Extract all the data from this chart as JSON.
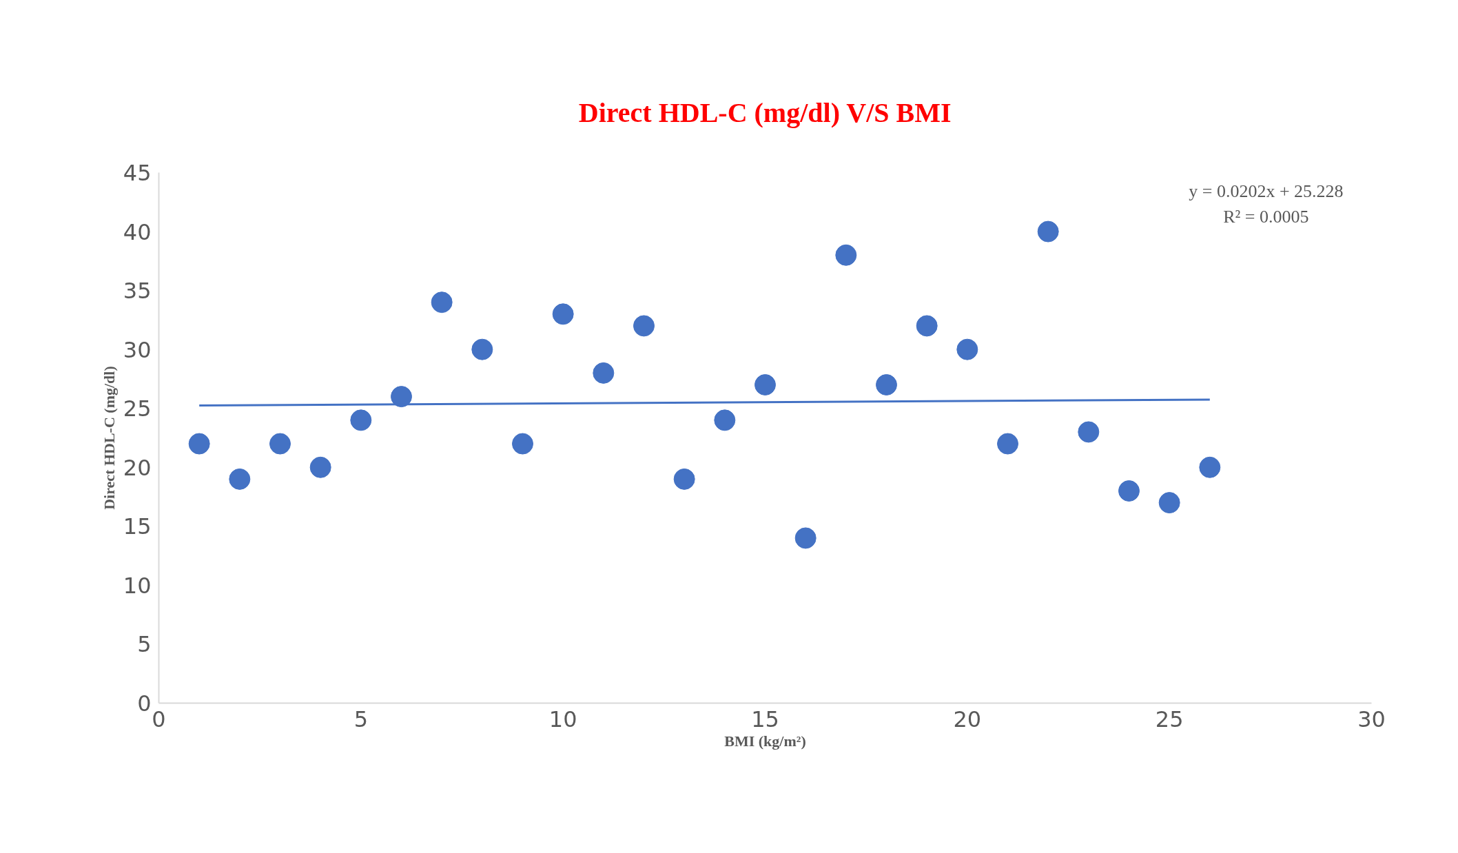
{
  "chart_data": {
    "type": "scatter",
    "title": "Direct HDL-C (mg/dl) V/S BMI",
    "xlabel": "BMI (kg/m²)",
    "ylabel": "Direct HDL-C (mg/dl)",
    "annotations": [
      "y = 0.0202x + 25.228",
      "R² = 0.0005"
    ],
    "x": [
      1,
      2,
      3,
      4,
      5,
      6,
      7,
      8,
      9,
      10,
      11,
      12,
      13,
      14,
      15,
      16,
      17,
      18,
      19,
      20,
      21,
      22,
      23,
      24,
      25,
      26
    ],
    "series": [
      {
        "color": "#4472c4",
        "marker": "circle",
        "values": [
          22,
          19,
          22,
          20,
          24,
          26,
          34,
          30,
          22,
          33,
          28,
          32,
          19,
          24,
          27,
          14,
          38,
          27,
          32,
          30,
          22,
          40,
          23,
          18,
          17,
          20
        ]
      },
      {
        "type": "line",
        "color": "#4472c4",
        "x": [
          1,
          26
        ],
        "values": [
          25.25,
          25.75
        ],
        "line_style": "solid"
      }
    ],
    "xlim": [
      0,
      30
    ],
    "xticks": [
      0,
      5,
      10,
      15,
      20,
      25,
      30
    ],
    "ylim": [
      0,
      45
    ],
    "yticks": [
      0,
      5,
      10,
      15,
      20,
      25,
      30,
      35,
      40,
      45
    ],
    "grid": false
  }
}
